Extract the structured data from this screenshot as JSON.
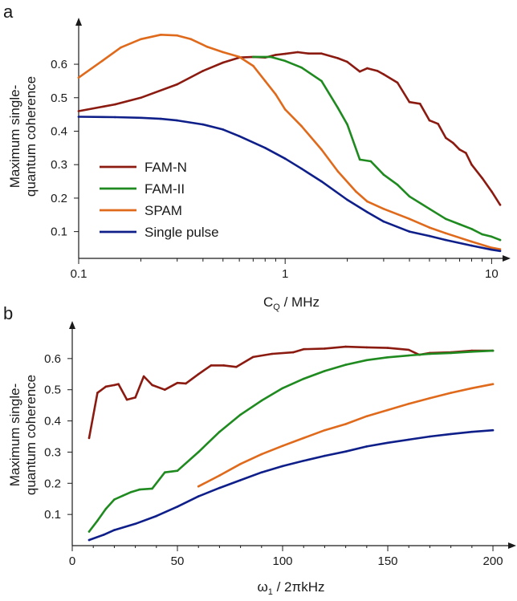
{
  "colors": {
    "fam_n": "#8b1a10",
    "fam_ii": "#1f8a1f",
    "spam": "#e06a1c",
    "single": "#0f1f8a"
  },
  "chart_data": [
    {
      "panel": "a",
      "type": "line",
      "xscale": "log",
      "xlim": [
        0.1,
        11.5
      ],
      "ylim": [
        0.02,
        0.72
      ],
      "xticks": [
        {
          "v": 0.1,
          "label": "0.1"
        },
        {
          "v": 1,
          "label": "1"
        },
        {
          "v": 10,
          "label": "10"
        }
      ],
      "yticks": [
        {
          "v": 0.1,
          "label": "0.1"
        },
        {
          "v": 0.2,
          "label": "0.2"
        },
        {
          "v": 0.3,
          "label": "0.3"
        },
        {
          "v": 0.4,
          "label": "0.4"
        },
        {
          "v": 0.5,
          "label": "0.5"
        },
        {
          "v": 0.6,
          "label": "0.6"
        }
      ],
      "xlabel_main": "C",
      "xlabel_sub": "Q",
      "xlabel_rest": " / MHz",
      "ylabel_line1": "Maximum single-",
      "ylabel_line2": "quantum coherence",
      "legend": [
        "FAM-N",
        "FAM-II",
        "SPAM",
        "Single pulse"
      ],
      "series": [
        {
          "name": "FAM-N",
          "color": "#8b1a10",
          "points": [
            [
              0.1,
              0.46
            ],
            [
              0.15,
              0.48
            ],
            [
              0.2,
              0.5
            ],
            [
              0.3,
              0.54
            ],
            [
              0.4,
              0.58
            ],
            [
              0.5,
              0.605
            ],
            [
              0.6,
              0.62
            ],
            [
              0.7,
              0.622
            ],
            [
              0.8,
              0.62
            ],
            [
              0.9,
              0.628
            ],
            [
              1.0,
              0.631
            ],
            [
              1.15,
              0.636
            ],
            [
              1.3,
              0.632
            ],
            [
              1.5,
              0.632
            ],
            [
              1.8,
              0.618
            ],
            [
              2.0,
              0.607
            ],
            [
              2.3,
              0.578
            ],
            [
              2.5,
              0.588
            ],
            [
              2.8,
              0.58
            ],
            [
              3.0,
              0.57
            ],
            [
              3.5,
              0.545
            ],
            [
              4.0,
              0.487
            ],
            [
              4.5,
              0.482
            ],
            [
              5.0,
              0.432
            ],
            [
              5.5,
              0.422
            ],
            [
              6.0,
              0.38
            ],
            [
              6.5,
              0.365
            ],
            [
              7.0,
              0.345
            ],
            [
              7.5,
              0.335
            ],
            [
              8.0,
              0.3
            ],
            [
              9.0,
              0.26
            ],
            [
              10.0,
              0.22
            ],
            [
              11.0,
              0.18
            ]
          ]
        },
        {
          "name": "FAM-II",
          "color": "#1f8a1f",
          "points": [
            [
              0.7,
              0.622
            ],
            [
              0.85,
              0.622
            ],
            [
              1.0,
              0.61
            ],
            [
              1.2,
              0.59
            ],
            [
              1.5,
              0.55
            ],
            [
              1.8,
              0.47
            ],
            [
              2.0,
              0.42
            ],
            [
              2.3,
              0.315
            ],
            [
              2.6,
              0.31
            ],
            [
              3.0,
              0.27
            ],
            [
              3.5,
              0.24
            ],
            [
              4.0,
              0.205
            ],
            [
              5.0,
              0.168
            ],
            [
              6.0,
              0.138
            ],
            [
              7.0,
              0.122
            ],
            [
              8.0,
              0.108
            ],
            [
              9.0,
              0.092
            ],
            [
              10.0,
              0.085
            ],
            [
              11.0,
              0.075
            ]
          ]
        },
        {
          "name": "SPAM",
          "color": "#e06a1c",
          "points": [
            [
              0.1,
              0.56
            ],
            [
              0.13,
              0.61
            ],
            [
              0.16,
              0.65
            ],
            [
              0.2,
              0.675
            ],
            [
              0.25,
              0.688
            ],
            [
              0.3,
              0.686
            ],
            [
              0.35,
              0.675
            ],
            [
              0.42,
              0.652
            ],
            [
              0.5,
              0.636
            ],
            [
              0.6,
              0.622
            ],
            [
              0.7,
              0.595
            ],
            [
              0.8,
              0.55
            ],
            [
              0.9,
              0.51
            ],
            [
              1.0,
              0.465
            ],
            [
              1.2,
              0.415
            ],
            [
              1.5,
              0.345
            ],
            [
              1.8,
              0.28
            ],
            [
              2.2,
              0.22
            ],
            [
              2.5,
              0.19
            ],
            [
              3.0,
              0.168
            ],
            [
              4.0,
              0.138
            ],
            [
              5.0,
              0.112
            ],
            [
              6.0,
              0.095
            ],
            [
              8.0,
              0.07
            ],
            [
              10.0,
              0.052
            ],
            [
              11.0,
              0.047
            ]
          ]
        },
        {
          "name": "Single pulse",
          "color": "#0f1f8a",
          "points": [
            [
              0.1,
              0.443
            ],
            [
              0.15,
              0.442
            ],
            [
              0.2,
              0.44
            ],
            [
              0.25,
              0.437
            ],
            [
              0.3,
              0.432
            ],
            [
              0.4,
              0.42
            ],
            [
              0.5,
              0.405
            ],
            [
              0.6,
              0.385
            ],
            [
              0.8,
              0.35
            ],
            [
              1.0,
              0.318
            ],
            [
              1.2,
              0.288
            ],
            [
              1.5,
              0.25
            ],
            [
              2.0,
              0.195
            ],
            [
              2.5,
              0.158
            ],
            [
              3.0,
              0.13
            ],
            [
              4.0,
              0.1
            ],
            [
              5.0,
              0.087
            ],
            [
              6.0,
              0.075
            ],
            [
              8.0,
              0.058
            ],
            [
              10.0,
              0.046
            ],
            [
              11.0,
              0.042
            ]
          ]
        }
      ]
    },
    {
      "panel": "b",
      "type": "line",
      "xscale": "linear",
      "xlim": [
        0,
        208
      ],
      "ylim": [
        0.0,
        0.7
      ],
      "xticks": [
        {
          "v": 0,
          "label": "0"
        },
        {
          "v": 50,
          "label": "50"
        },
        {
          "v": 100,
          "label": "100"
        },
        {
          "v": 150,
          "label": "150"
        },
        {
          "v": 200,
          "label": "200"
        }
      ],
      "yticks": [
        {
          "v": 0.1,
          "label": "0.1"
        },
        {
          "v": 0.2,
          "label": "0.2"
        },
        {
          "v": 0.3,
          "label": "0.3"
        },
        {
          "v": 0.4,
          "label": "0.4"
        },
        {
          "v": 0.5,
          "label": "0.5"
        },
        {
          "v": 0.6,
          "label": "0.6"
        }
      ],
      "xlabel_main": "ω",
      "xlabel_sub": "1",
      "xlabel_rest": " / 2πkHz",
      "ylabel_line1": "Maximum single-",
      "ylabel_line2": "quantum coherence",
      "series": [
        {
          "name": "FAM-N",
          "color": "#8b1a10",
          "points": [
            [
              8,
              0.345
            ],
            [
              12,
              0.49
            ],
            [
              16,
              0.51
            ],
            [
              20,
              0.515
            ],
            [
              22,
              0.518
            ],
            [
              26,
              0.468
            ],
            [
              30,
              0.475
            ],
            [
              34,
              0.543
            ],
            [
              38,
              0.515
            ],
            [
              44,
              0.5
            ],
            [
              50,
              0.522
            ],
            [
              54,
              0.52
            ],
            [
              60,
              0.55
            ],
            [
              66,
              0.578
            ],
            [
              72,
              0.578
            ],
            [
              78,
              0.573
            ],
            [
              86,
              0.605
            ],
            [
              95,
              0.615
            ],
            [
              105,
              0.62
            ],
            [
              110,
              0.63
            ],
            [
              120,
              0.632
            ],
            [
              130,
              0.638
            ],
            [
              140,
              0.636
            ],
            [
              150,
              0.634
            ],
            [
              160,
              0.628
            ],
            [
              165,
              0.612
            ],
            [
              170,
              0.618
            ],
            [
              180,
              0.62
            ],
            [
              190,
              0.625
            ],
            [
              200,
              0.625
            ]
          ]
        },
        {
          "name": "FAM-II",
          "color": "#1f8a1f",
          "points": [
            [
              8,
              0.045
            ],
            [
              12,
              0.08
            ],
            [
              16,
              0.118
            ],
            [
              20,
              0.148
            ],
            [
              24,
              0.16
            ],
            [
              28,
              0.172
            ],
            [
              32,
              0.18
            ],
            [
              38,
              0.183
            ],
            [
              44,
              0.235
            ],
            [
              50,
              0.24
            ],
            [
              60,
              0.3
            ],
            [
              70,
              0.365
            ],
            [
              80,
              0.42
            ],
            [
              90,
              0.465
            ],
            [
              100,
              0.505
            ],
            [
              110,
              0.535
            ],
            [
              120,
              0.56
            ],
            [
              130,
              0.58
            ],
            [
              140,
              0.595
            ],
            [
              150,
              0.604
            ],
            [
              160,
              0.61
            ],
            [
              170,
              0.615
            ],
            [
              180,
              0.618
            ],
            [
              190,
              0.622
            ],
            [
              200,
              0.625
            ]
          ]
        },
        {
          "name": "SPAM",
          "color": "#e06a1c",
          "points": [
            [
              60,
              0.19
            ],
            [
              70,
              0.225
            ],
            [
              80,
              0.262
            ],
            [
              90,
              0.293
            ],
            [
              100,
              0.32
            ],
            [
              110,
              0.345
            ],
            [
              120,
              0.37
            ],
            [
              130,
              0.39
            ],
            [
              140,
              0.415
            ],
            [
              150,
              0.435
            ],
            [
              160,
              0.455
            ],
            [
              170,
              0.473
            ],
            [
              180,
              0.49
            ],
            [
              190,
              0.505
            ],
            [
              200,
              0.518
            ]
          ]
        },
        {
          "name": "Single pulse",
          "color": "#0f1f8a",
          "points": [
            [
              8,
              0.018
            ],
            [
              15,
              0.035
            ],
            [
              20,
              0.05
            ],
            [
              30,
              0.07
            ],
            [
              40,
              0.095
            ],
            [
              50,
              0.125
            ],
            [
              60,
              0.158
            ],
            [
              70,
              0.185
            ],
            [
              80,
              0.21
            ],
            [
              90,
              0.235
            ],
            [
              100,
              0.255
            ],
            [
              110,
              0.272
            ],
            [
              120,
              0.288
            ],
            [
              130,
              0.302
            ],
            [
              140,
              0.318
            ],
            [
              150,
              0.33
            ],
            [
              160,
              0.34
            ],
            [
              170,
              0.35
            ],
            [
              180,
              0.358
            ],
            [
              190,
              0.365
            ],
            [
              200,
              0.37
            ]
          ]
        }
      ]
    }
  ]
}
